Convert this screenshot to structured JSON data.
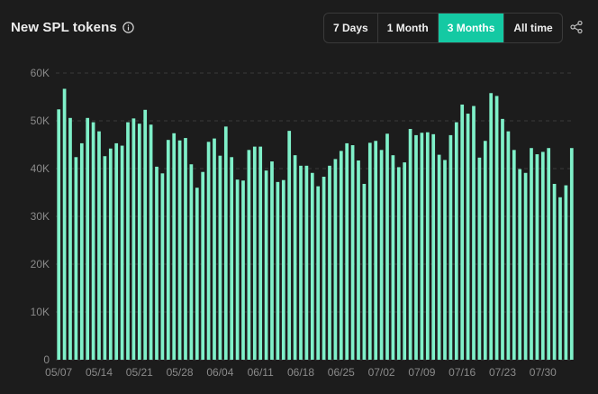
{
  "header": {
    "title": "New SPL tokens",
    "info_icon": "info-circle-icon",
    "share_icon": "share-icon",
    "ranges": [
      {
        "label": "7 Days",
        "active": false
      },
      {
        "label": "1 Month",
        "active": false
      },
      {
        "label": "3 Months",
        "active": true
      },
      {
        "label": "All time",
        "active": false
      }
    ]
  },
  "colors": {
    "bar": "#7ff0c9",
    "active_range": "#14c9a3",
    "background": "#1c1c1c",
    "gridline": "#3a3a3a",
    "tick_text": "#8a8a8a"
  },
  "chart_data": {
    "type": "bar",
    "title": "New SPL tokens",
    "xlabel": "",
    "ylabel": "",
    "ylim": [
      0,
      60000
    ],
    "y_ticks": [
      "0",
      "10K",
      "20K",
      "30K",
      "40K",
      "50K",
      "60K"
    ],
    "y_tick_values": [
      0,
      10000,
      20000,
      30000,
      40000,
      50000,
      60000
    ],
    "grid": "horizontal-dashed",
    "legend": "none",
    "x_tick_labels": [
      {
        "index": 0,
        "label": "05/07"
      },
      {
        "index": 7,
        "label": "05/14"
      },
      {
        "index": 14,
        "label": "05/21"
      },
      {
        "index": 21,
        "label": "05/28"
      },
      {
        "index": 28,
        "label": "06/04"
      },
      {
        "index": 35,
        "label": "06/11"
      },
      {
        "index": 42,
        "label": "06/18"
      },
      {
        "index": 49,
        "label": "06/25"
      },
      {
        "index": 56,
        "label": "07/02"
      },
      {
        "index": 63,
        "label": "07/09"
      },
      {
        "index": 70,
        "label": "07/16"
      },
      {
        "index": 77,
        "label": "07/23"
      },
      {
        "index": 84,
        "label": "07/30"
      }
    ],
    "values": [
      52400,
      56700,
      50600,
      42400,
      45300,
      50600,
      49700,
      47800,
      42600,
      44200,
      45300,
      44800,
      49700,
      50500,
      49400,
      52300,
      49200,
      40400,
      39000,
      46000,
      47400,
      45900,
      46400,
      40900,
      36000,
      39300,
      45600,
      46300,
      42700,
      48800,
      42400,
      37700,
      37500,
      43900,
      44600,
      44600,
      39600,
      41500,
      37200,
      37600,
      47900,
      42800,
      40600,
      40600,
      39100,
      36300,
      38300,
      40600,
      42000,
      43700,
      45300,
      44900,
      41700,
      36800,
      45400,
      45800,
      43900,
      47300,
      42800,
      40300,
      41300,
      48300,
      47000,
      47500,
      47600,
      47200,
      42900,
      41800,
      47000,
      49700,
      53400,
      51500,
      53100,
      42300,
      45800,
      55800,
      55200,
      50400,
      47800,
      43900,
      39900,
      39100,
      44300,
      43000,
      43500,
      44300,
      36800,
      34000,
      36500,
      44300
    ]
  }
}
